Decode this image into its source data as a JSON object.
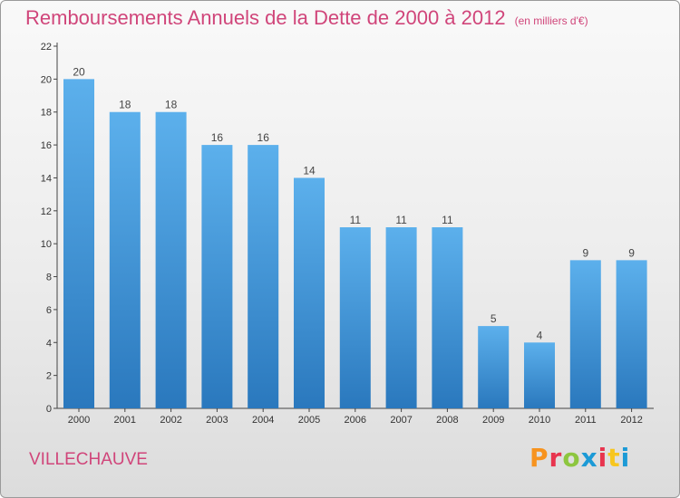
{
  "header": {
    "title": "Remboursements Annuels de la Dette de 2000 à 2012",
    "unit": "(en milliers d'€)"
  },
  "footer": {
    "commune": "VILLECHAUVE",
    "brand": "Proxiti",
    "brand_colors": [
      "#f7931e",
      "#e8344e",
      "#8dc63f",
      "#1c9ad6",
      "#e8344e",
      "#f7c61e",
      "#1c9ad6"
    ]
  },
  "colors": {
    "bar_top": "#5cb0ec",
    "bar_bottom": "#2a78bd",
    "title": "#d0457a"
  },
  "chart_data": {
    "type": "bar",
    "title": "Remboursements Annuels de la Dette de 2000 à 2012",
    "subtitle": "(en milliers d'€)",
    "categories": [
      "2000",
      "2001",
      "2002",
      "2003",
      "2004",
      "2005",
      "2006",
      "2007",
      "2008",
      "2009",
      "2010",
      "2011",
      "2012"
    ],
    "values": [
      20,
      18,
      18,
      16,
      16,
      14,
      11,
      11,
      11,
      5,
      4,
      9,
      9
    ],
    "ylim": [
      0,
      22
    ],
    "yticks": [
      0,
      2,
      4,
      6,
      8,
      10,
      12,
      14,
      16,
      18,
      20,
      22
    ],
    "grid": false,
    "data_labels": true
  }
}
